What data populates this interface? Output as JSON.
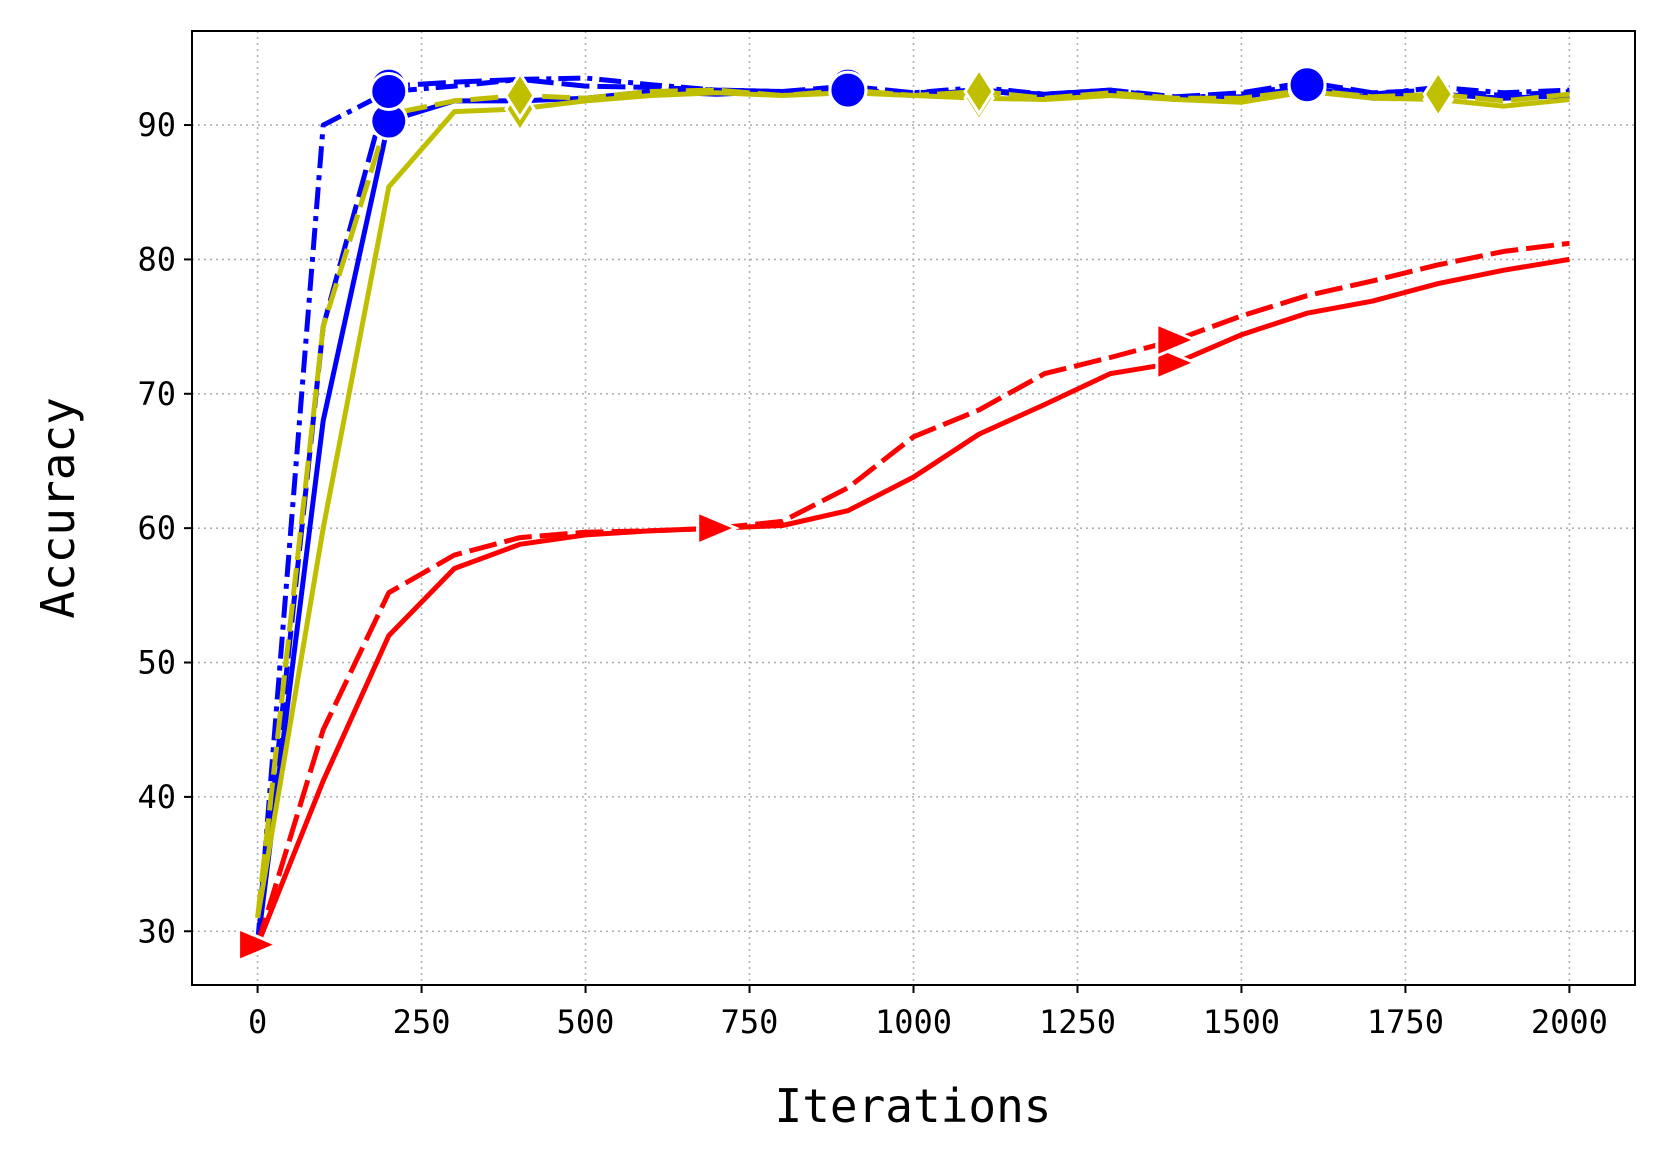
{
  "chart_data": {
    "type": "line",
    "title": "",
    "xlabel": "Iterations",
    "ylabel": "Accuracy",
    "xlim": [
      -100,
      2100
    ],
    "ylim": [
      26,
      97
    ],
    "xticks": [
      0,
      250,
      500,
      750,
      1000,
      1250,
      1500,
      1750,
      2000
    ],
    "yticks": [
      30,
      40,
      50,
      60,
      70,
      80,
      90
    ],
    "grid": true,
    "legend": "none",
    "series": [
      {
        "color": "#0000ff",
        "dash": "solid",
        "marker": "circle",
        "markers_at": [
          200,
          900,
          1600
        ],
        "x": [
          0,
          100,
          200,
          300,
          400,
          500,
          600,
          700,
          800,
          900,
          1000,
          1100,
          1200,
          1300,
          1400,
          1500,
          1600,
          1700,
          1800,
          1900,
          2000
        ],
        "y": [
          29.0,
          68.0,
          90.3,
          91.8,
          91.8,
          92.0,
          92.5,
          92.3,
          92.5,
          92.5,
          92.2,
          92.6,
          92.1,
          92.4,
          91.9,
          92.1,
          92.8,
          92.0,
          92.3,
          92.0,
          92.2
        ]
      },
      {
        "color": "#0000ff",
        "dash": "dashed",
        "marker": "circle",
        "markers_at": [
          200,
          900,
          1600
        ],
        "x": [
          0,
          100,
          200,
          300,
          400,
          500,
          600,
          700,
          800,
          900,
          1000,
          1100,
          1200,
          1300,
          1400,
          1500,
          1600,
          1700,
          1800,
          1900,
          2000
        ],
        "y": [
          29.0,
          75.0,
          92.9,
          93.2,
          93.4,
          92.9,
          92.8,
          92.6,
          92.5,
          92.9,
          92.4,
          92.6,
          92.3,
          92.6,
          92.1,
          92.4,
          93.2,
          92.4,
          92.6,
          92.2,
          92.5
        ]
      },
      {
        "color": "#0000ff",
        "dash": "dashdot",
        "marker": "circle",
        "markers_at": [
          200,
          900,
          1600
        ],
        "x": [
          0,
          100,
          200,
          300,
          400,
          500,
          600,
          700,
          800,
          900,
          1000,
          1100,
          1200,
          1300,
          1400,
          1500,
          1600,
          1700,
          1800,
          1900,
          2000
        ],
        "y": [
          29.0,
          90.0,
          92.5,
          92.9,
          93.4,
          93.5,
          93.0,
          92.6,
          92.5,
          92.6,
          92.4,
          92.8,
          92.3,
          92.6,
          92.0,
          92.3,
          93.0,
          92.3,
          92.8,
          92.4,
          92.6
        ]
      },
      {
        "color": "#bfbf00",
        "dash": "solid",
        "marker": "diamond",
        "markers_at": [
          400,
          1100,
          1800
        ],
        "x": [
          0,
          100,
          200,
          300,
          400,
          500,
          600,
          700,
          800,
          900,
          1000,
          1100,
          1200,
          1300,
          1400,
          1500,
          1600,
          1700,
          1800,
          1900,
          2000
        ],
        "y": [
          31.0,
          60.0,
          85.4,
          91.0,
          91.2,
          91.8,
          92.2,
          92.4,
          92.2,
          92.4,
          92.2,
          92.0,
          91.9,
          92.2,
          91.9,
          91.7,
          92.5,
          92.0,
          91.9,
          91.4,
          91.9
        ]
      },
      {
        "color": "#bfbf00",
        "dash": "dashed",
        "marker": "diamond",
        "markers_at": [
          400,
          1100,
          1800
        ],
        "x": [
          0,
          100,
          200,
          300,
          400,
          500,
          600,
          700,
          800,
          900,
          1000,
          1100,
          1200,
          1300,
          1400,
          1500,
          1600,
          1700,
          1800,
          1900,
          2000
        ],
        "y": [
          31.0,
          75.0,
          90.8,
          91.8,
          92.2,
          92.0,
          92.5,
          92.6,
          92.2,
          92.6,
          92.2,
          92.5,
          92.0,
          92.4,
          92.0,
          92.0,
          92.6,
          92.1,
          92.3,
          91.8,
          92.3
        ]
      },
      {
        "color": "#ff0000",
        "dash": "solid",
        "marker": "triangle-right",
        "markers_at": [
          0,
          700,
          1400
        ],
        "x": [
          0,
          100,
          200,
          300,
          400,
          500,
          600,
          700,
          800,
          900,
          1000,
          1100,
          1200,
          1300,
          1400,
          1500,
          1600,
          1700,
          1800,
          1900,
          2000
        ],
        "y": [
          29.0,
          41.2,
          52.0,
          57.0,
          58.8,
          59.5,
          59.8,
          60.0,
          60.2,
          61.3,
          63.8,
          67.0,
          69.2,
          71.5,
          72.3,
          74.4,
          76.0,
          76.9,
          78.2,
          79.2,
          80.0
        ]
      },
      {
        "color": "#ff0000",
        "dash": "dashed",
        "marker": "triangle-right",
        "markers_at": [
          0,
          700,
          1400
        ],
        "x": [
          0,
          100,
          200,
          300,
          400,
          500,
          600,
          700,
          800,
          900,
          1000,
          1100,
          1200,
          1300,
          1400,
          1500,
          1600,
          1700,
          1800,
          1900,
          2000
        ],
        "y": [
          29.0,
          45.0,
          55.2,
          58.0,
          59.3,
          59.7,
          59.8,
          60.0,
          60.5,
          63.0,
          66.8,
          68.8,
          71.5,
          72.7,
          74.0,
          75.8,
          77.3,
          78.4,
          79.6,
          80.6,
          81.2
        ]
      }
    ]
  }
}
